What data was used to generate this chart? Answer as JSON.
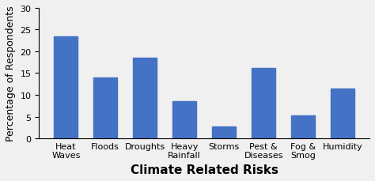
{
  "categories": [
    "Heat\nWaves",
    "Floods",
    "Droughts",
    "Heavy\nRainfall",
    "Storms",
    "Pest &\nDiseases",
    "Fog &\nSmog",
    "Humidity"
  ],
  "values": [
    23.5,
    14.0,
    18.5,
    8.5,
    2.7,
    16.2,
    5.2,
    11.5
  ],
  "bar_color": "#4472C4",
  "title": "",
  "xlabel": "Climate Related Risks",
  "ylabel": "Percentage of Respondents",
  "ylim": [
    0,
    30
  ],
  "yticks": [
    0,
    5,
    10,
    15,
    20,
    25,
    30
  ],
  "xlabel_fontsize": 11,
  "ylabel_fontsize": 9,
  "tick_fontsize": 8,
  "background_color": "#ffffff",
  "edge_color": "#2f5496"
}
